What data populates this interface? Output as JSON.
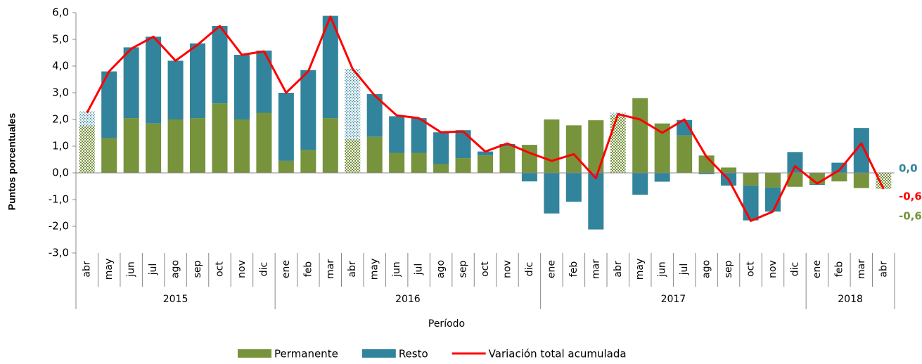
{
  "chart_data": {
    "type": "bar",
    "stacked": true,
    "ylabel": "Puntos porcentuales",
    "xlabel": "Período",
    "categories": [
      "abr",
      "may",
      "jun",
      "jul",
      "ago",
      "sep",
      "oct",
      "nov",
      "dic",
      "ene",
      "feb",
      "mar",
      "abr",
      "may",
      "jun",
      "jul",
      "ago",
      "sep",
      "oct",
      "nov",
      "dic",
      "ene",
      "feb",
      "mar",
      "abr",
      "may",
      "jun",
      "jul",
      "ago",
      "sep",
      "oct",
      "nov",
      "dic",
      "ene",
      "feb",
      "mar",
      "abr"
    ],
    "groups": [
      {
        "label": "2015",
        "span": 9
      },
      {
        "label": "2016",
        "span": 12
      },
      {
        "label": "2017",
        "span": 12
      },
      {
        "label": "2018",
        "span": 4
      }
    ],
    "hatched": [
      0,
      12,
      24,
      36
    ],
    "series": [
      {
        "name": "Permanente",
        "color": "#77933c",
        "kind": "bar",
        "end_label": "-0,6",
        "values": [
          1.75,
          1.3,
          2.05,
          1.85,
          2.0,
          2.05,
          2.6,
          2.0,
          2.25,
          0.45,
          0.85,
          2.05,
          1.25,
          1.35,
          0.75,
          0.75,
          0.33,
          0.55,
          0.65,
          1.0,
          1.05,
          2.0,
          1.78,
          1.97,
          2.15,
          2.8,
          1.85,
          1.4,
          0.65,
          0.2,
          -0.48,
          -0.55,
          -0.52,
          -0.42,
          -0.32,
          -0.57,
          -0.6
        ]
      },
      {
        "name": "Resto",
        "color": "#31849b",
        "kind": "bar",
        "end_label": "0,0",
        "values": [
          0.55,
          2.5,
          2.65,
          3.25,
          2.2,
          2.8,
          2.9,
          2.42,
          2.33,
          2.55,
          3.0,
          3.83,
          2.65,
          1.6,
          1.37,
          1.3,
          1.19,
          1.05,
          0.15,
          0.08,
          -0.32,
          -1.52,
          -1.08,
          -2.12,
          0.1,
          -0.82,
          -0.33,
          0.58,
          -0.05,
          -0.48,
          -1.3,
          -0.9,
          0.78,
          -0.03,
          0.38,
          1.68,
          0.0
        ]
      },
      {
        "name": "Variación total acumulada",
        "color": "#ff0000",
        "kind": "line",
        "end_label": "-0,6",
        "values": [
          2.25,
          3.8,
          4.65,
          5.1,
          4.2,
          4.8,
          5.5,
          4.42,
          4.55,
          3.0,
          3.8,
          5.85,
          3.9,
          2.9,
          2.15,
          2.05,
          1.52,
          1.55,
          0.8,
          1.1,
          0.75,
          0.45,
          0.7,
          -0.2,
          2.2,
          2.0,
          1.5,
          2.0,
          0.6,
          -0.25,
          -1.8,
          -1.45,
          0.25,
          -0.4,
          0.1,
          1.1,
          -0.6
        ]
      }
    ],
    "ylim": [
      -3,
      6
    ],
    "yticks": [
      {
        "value": -3,
        "label": "-3,0"
      },
      {
        "value": -2,
        "label": "-2,0"
      },
      {
        "value": -1,
        "label": "-1,0"
      },
      {
        "value": 0,
        "label": "0,0"
      },
      {
        "value": 1,
        "label": "1,0"
      },
      {
        "value": 2,
        "label": "2,0"
      },
      {
        "value": 3,
        "label": "3,0"
      },
      {
        "value": 4,
        "label": "4,0"
      },
      {
        "value": 5,
        "label": "5,0"
      },
      {
        "value": 6,
        "label": "6,0"
      }
    ],
    "legend": "bottom"
  }
}
